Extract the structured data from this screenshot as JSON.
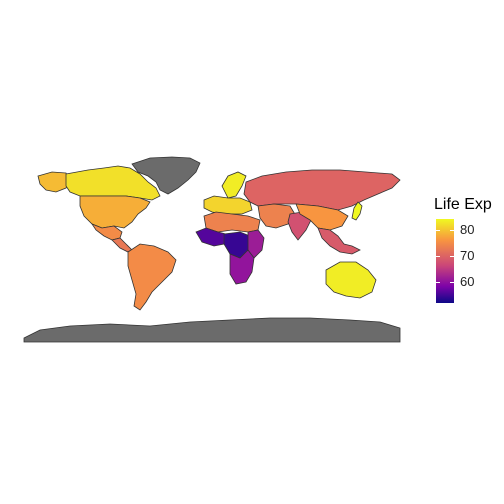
{
  "legend": {
    "title": "Life Exp",
    "ticks": [
      {
        "label": "80",
        "value": 80
      },
      {
        "label": "70",
        "value": 70
      },
      {
        "label": "60",
        "value": 60
      }
    ],
    "range": [
      52,
      84
    ],
    "palette": [
      "#0d0887",
      "#7e03a8",
      "#cc4778",
      "#f89540",
      "#f0f921"
    ]
  },
  "colors": {
    "no_data": "#6b6b6b",
    "border": "#333333",
    "background": "#ffffff"
  },
  "regions": [
    {
      "name": "canada",
      "life_exp": 82
    },
    {
      "name": "greenland",
      "life_exp": null
    },
    {
      "name": "alaska",
      "life_exp": 79
    },
    {
      "name": "usa",
      "life_exp": 78
    },
    {
      "name": "mexico",
      "life_exp": 75
    },
    {
      "name": "central-america",
      "life_exp": 73
    },
    {
      "name": "south-america",
      "life_exp": 75
    },
    {
      "name": "europe",
      "life_exp": 81
    },
    {
      "name": "scandinavia",
      "life_exp": 83
    },
    {
      "name": "russia",
      "life_exp": 71
    },
    {
      "name": "north-africa",
      "life_exp": 74
    },
    {
      "name": "west-africa",
      "life_exp": 57
    },
    {
      "name": "central-africa",
      "life_exp": 55
    },
    {
      "name": "east-africa",
      "life_exp": 63
    },
    {
      "name": "southern-africa",
      "life_exp": 62
    },
    {
      "name": "middle-east",
      "life_exp": 74
    },
    {
      "name": "india",
      "life_exp": 69
    },
    {
      "name": "china",
      "life_exp": 76
    },
    {
      "name": "southeast-asia",
      "life_exp": 70
    },
    {
      "name": "japan",
      "life_exp": 84
    },
    {
      "name": "australia",
      "life_exp": 83
    },
    {
      "name": "antarctica",
      "life_exp": null
    }
  ]
}
